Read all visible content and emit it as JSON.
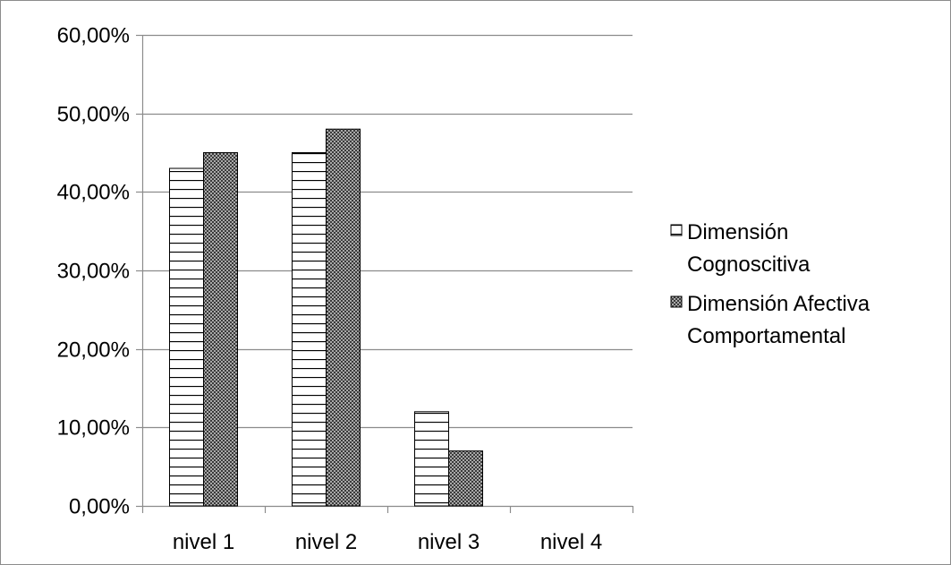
{
  "chart_data": {
    "type": "bar",
    "categories": [
      "nivel 1",
      "nivel 2",
      "nivel 3",
      "nivel 4"
    ],
    "series": [
      {
        "name": "Dimensión Cognoscitiva",
        "name_lines": [
          "Dimensión",
          "Cognoscitiva"
        ],
        "values": [
          0.43,
          0.45,
          0.12,
          0
        ],
        "pattern": "horizontal-stripes"
      },
      {
        "name": "Dimensión Afectiva Comportamental",
        "name_lines": [
          "Dimensión Afectiva",
          "Comportamental"
        ],
        "values": [
          0.45,
          0.48,
          0.07,
          0
        ],
        "pattern": "dots"
      }
    ],
    "ylim": [
      0,
      0.6
    ],
    "yticks": [
      0,
      0.1,
      0.2,
      0.3,
      0.4,
      0.5,
      0.6
    ],
    "ytick_labels": [
      "0,00%",
      "10,00%",
      "20,00%",
      "30,00%",
      "40,00%",
      "50,00%",
      "60,00%"
    ],
    "grid": true,
    "legend_position": "right",
    "title": "",
    "xlabel": "",
    "ylabel": "",
    "colors": {
      "gridline": "#8c8c8c",
      "bar_outline": "#000000",
      "fill": "#ffffff"
    }
  }
}
